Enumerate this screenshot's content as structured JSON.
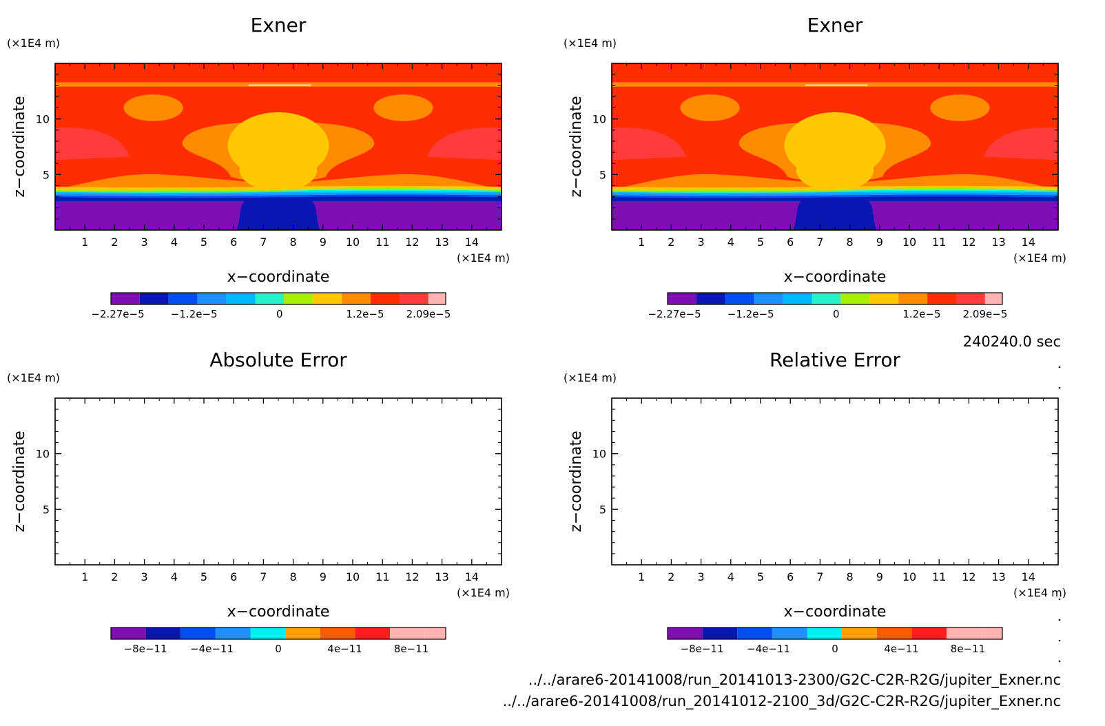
{
  "figure": {
    "time_label": "240240.0 sec",
    "file_paths": [
      "../../arare6-20141008/run_20141013-2300/G2C-C2R-R2G/jupiter_Exner.nc",
      "../../arare6-20141008/run_20141012-2100_3d/G2C-C2R-R2G/jupiter_Exner.nc"
    ]
  },
  "chart_data": [
    {
      "type": "heatmap",
      "title": "Exner",
      "xlabel": "x−coordinate",
      "ylabel": "z−coordinate",
      "x_unit": "(×1E4 m)",
      "y_unit": "(×1E4 m)",
      "xlim": [
        0,
        15
      ],
      "ylim": [
        0,
        15
      ],
      "x_ticks": [
        1,
        2,
        3,
        4,
        5,
        6,
        7,
        8,
        9,
        10,
        11,
        12,
        13,
        14
      ],
      "y_ticks": [
        5,
        10
      ],
      "colorbar": {
        "levels": 12,
        "colors": [
          "#7d0fb4",
          "#0a16b4",
          "#0050f0",
          "#1e90ff",
          "#00b8ff",
          "#28f0c8",
          "#a8f000",
          "#ffc800",
          "#ff8c00",
          "#ff2d00",
          "#ff3c3c",
          "#ffb4b4"
        ],
        "tick_labels": [
          "−2.27e−5",
          "−1.2e−5",
          "0",
          "1.2e−5",
          "2.09e−5"
        ],
        "tick_values": [
          -2.27e-05,
          -1.2e-05,
          0,
          1.2e-05,
          2.09e-05
        ]
      }
    },
    {
      "type": "heatmap",
      "title": "Exner",
      "xlabel": "x−coordinate",
      "ylabel": "z−coordinate",
      "x_unit": "(×1E4 m)",
      "y_unit": "(×1E4 m)",
      "xlim": [
        0,
        15
      ],
      "ylim": [
        0,
        15
      ],
      "x_ticks": [
        1,
        2,
        3,
        4,
        5,
        6,
        7,
        8,
        9,
        10,
        11,
        12,
        13,
        14
      ],
      "y_ticks": [
        5,
        10
      ],
      "colorbar": {
        "levels": 12,
        "colors": [
          "#7d0fb4",
          "#0a16b4",
          "#0050f0",
          "#1e90ff",
          "#00b8ff",
          "#28f0c8",
          "#a8f000",
          "#ffc800",
          "#ff8c00",
          "#ff2d00",
          "#ff3c3c",
          "#ffb4b4"
        ],
        "tick_labels": [
          "−2.27e−5",
          "−1.2e−5",
          "0",
          "1.2e−5",
          "2.09e−5"
        ],
        "tick_values": [
          -2.27e-05,
          -1.2e-05,
          0,
          1.2e-05,
          2.09e-05
        ]
      }
    },
    {
      "type": "heatmap",
      "title": "Absolute Error",
      "xlabel": "x−coordinate",
      "ylabel": "z−coordinate",
      "x_unit": "(×1E4 m)",
      "y_unit": "(×1E4 m)",
      "xlim": [
        0,
        15
      ],
      "ylim": [
        0,
        15
      ],
      "x_ticks": [
        1,
        2,
        3,
        4,
        5,
        6,
        7,
        8,
        9,
        10,
        11,
        12,
        13,
        14
      ],
      "y_ticks": [
        5,
        10
      ],
      "empty": true,
      "colorbar": {
        "levels": 10,
        "colors": [
          "#7d0fb4",
          "#0a16b4",
          "#0050f0",
          "#1e90ff",
          "#00f0f0",
          "#ffa000",
          "#ff5a00",
          "#ff1e1e",
          "#ffb4b4",
          "#ffb4b4"
        ],
        "tick_labels": [
          "−8e−11",
          "−4e−11",
          "0",
          "4e−11",
          "8e−11"
        ],
        "tick_values": [
          -8e-11,
          -4e-11,
          0,
          4e-11,
          8e-11
        ]
      }
    },
    {
      "type": "heatmap",
      "title": "Relative Error",
      "xlabel": "x−coordinate",
      "ylabel": "z−coordinate",
      "x_unit": "(×1E4 m)",
      "y_unit": "(×1E4 m)",
      "xlim": [
        0,
        15
      ],
      "ylim": [
        0,
        15
      ],
      "x_ticks": [
        1,
        2,
        3,
        4,
        5,
        6,
        7,
        8,
        9,
        10,
        11,
        12,
        13,
        14
      ],
      "y_ticks": [
        5,
        10
      ],
      "empty": true,
      "colorbar": {
        "levels": 10,
        "colors": [
          "#7d0fb4",
          "#0a16b4",
          "#0050f0",
          "#1e90ff",
          "#00f0f0",
          "#ffa000",
          "#ff5a00",
          "#ff1e1e",
          "#ffb4b4",
          "#ffb4b4"
        ],
        "tick_labels": [
          "−8e−11",
          "−4e−11",
          "0",
          "4e−11",
          "8e−11"
        ],
        "tick_values": [
          -8e-11,
          -4e-11,
          0,
          4e-11,
          8e-11
        ]
      }
    }
  ]
}
